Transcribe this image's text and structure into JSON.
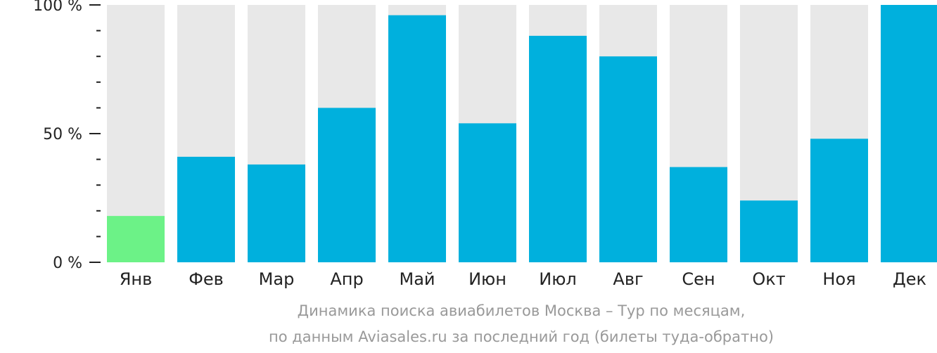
{
  "chart_data": {
    "type": "bar",
    "categories": [
      "Янв",
      "Фев",
      "Мар",
      "Апр",
      "Май",
      "Июн",
      "Июл",
      "Авг",
      "Сен",
      "Окт",
      "Ноя",
      "Дек"
    ],
    "values": [
      18,
      41,
      38,
      60,
      96,
      54,
      88,
      80,
      37,
      24,
      48,
      100
    ],
    "ylim": [
      0,
      100
    ],
    "yticks": [
      {
        "value": 100,
        "label": "100 %"
      },
      {
        "value": 50,
        "label": "50 %"
      },
      {
        "value": 0,
        "label": "0 %"
      }
    ],
    "minor_tick_step": 10,
    "highlight_index": 0,
    "grid": false,
    "colors": {
      "bar": "#00b0dd",
      "highlight": "#6cf287",
      "background_track": "#e8e8e8",
      "axis": "#222222"
    }
  },
  "caption": {
    "line1": "Динамика поиска авиабилетов Москва – Тур по месяцам,",
    "line2": "по данным Aviasales.ru за последний год (билеты туда-обратно)"
  }
}
